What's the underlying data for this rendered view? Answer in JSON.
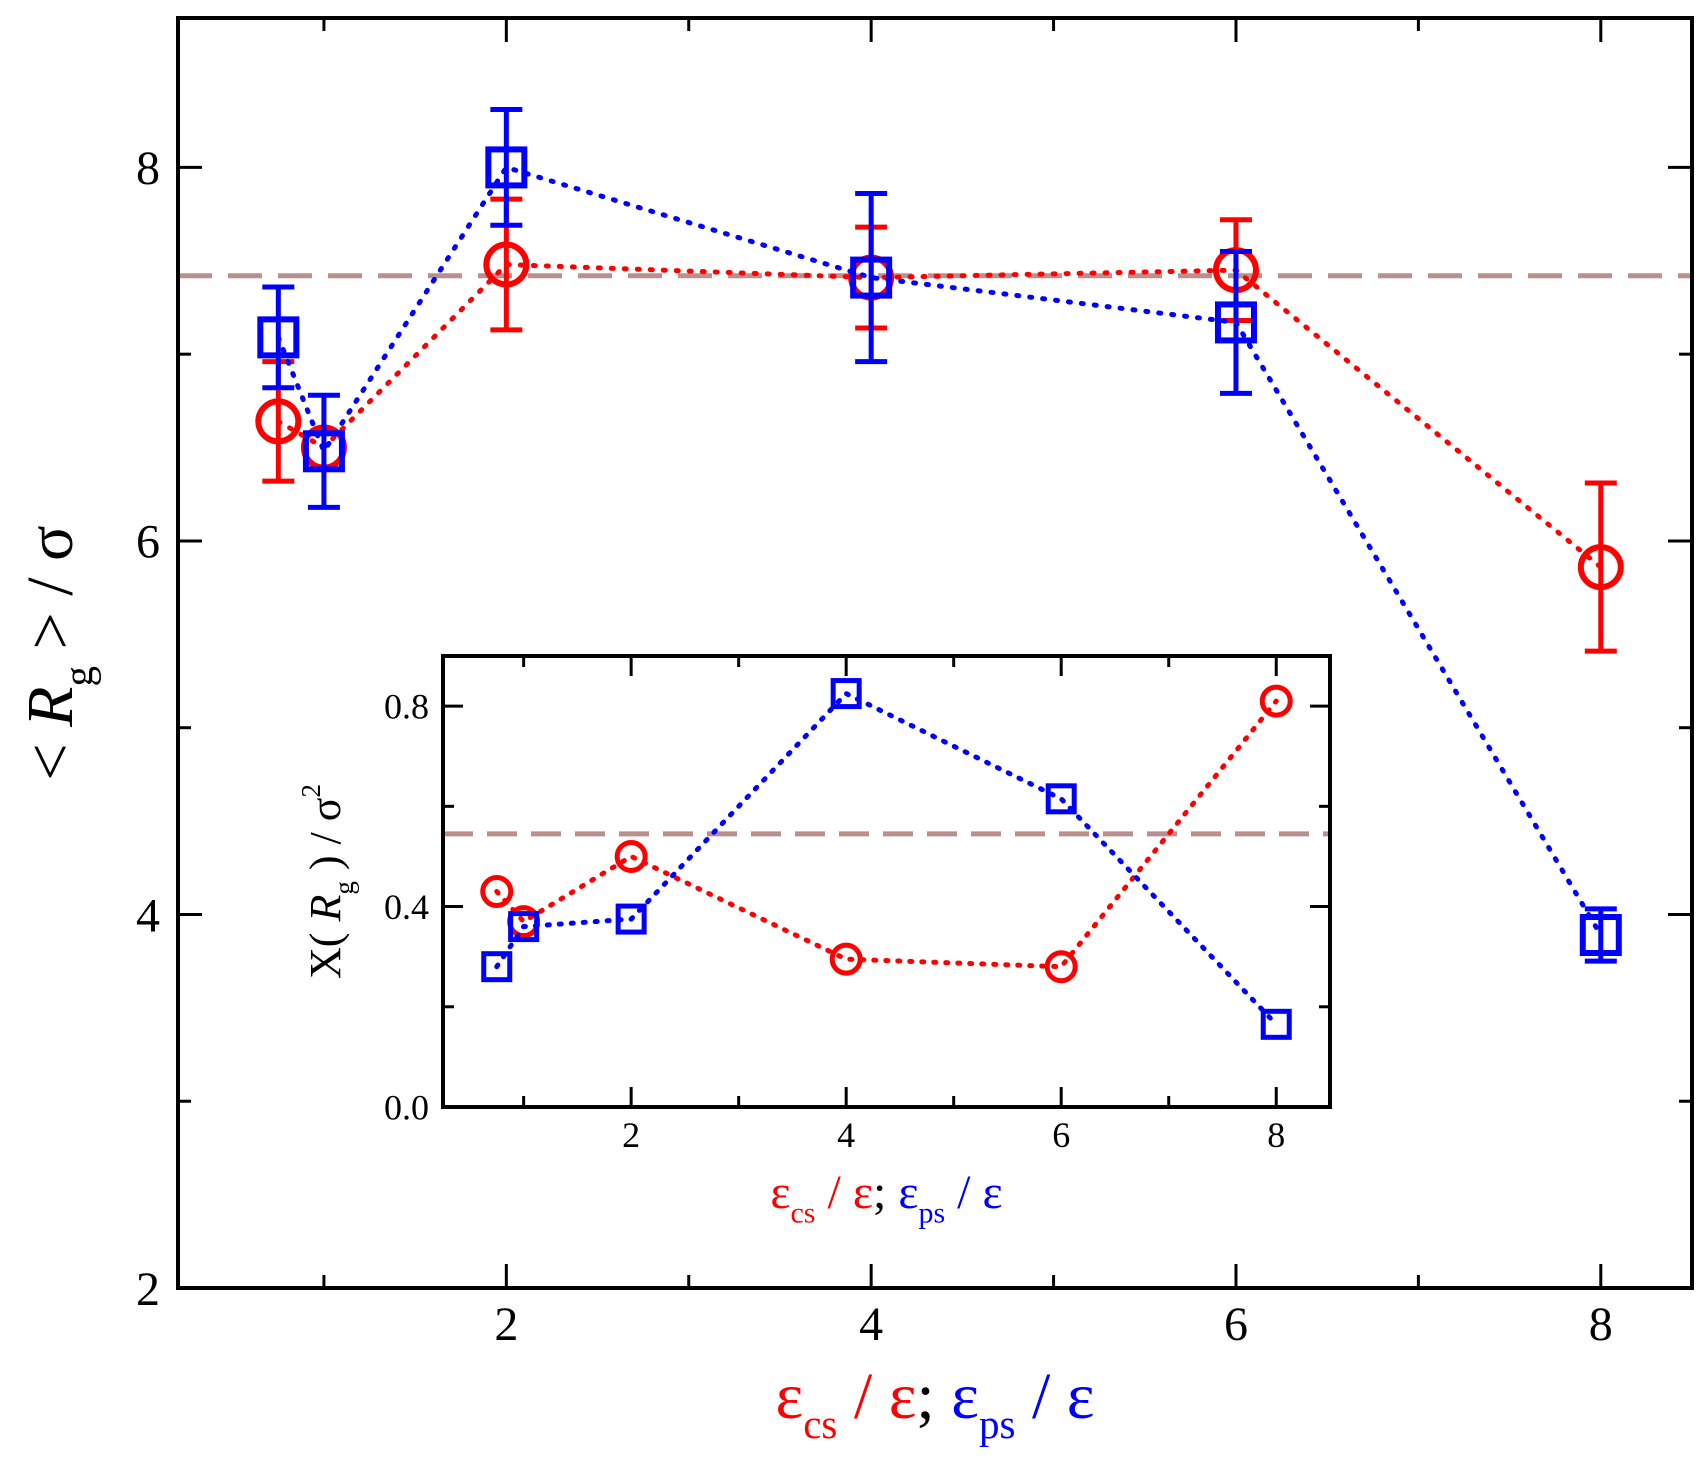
{
  "colors": {
    "series_cs": "#ff0000",
    "series_ps": "#0000ff",
    "reference_line": "#bc8f8f",
    "axes": "#000000",
    "background": "#ffffff"
  },
  "chart_data": [
    {
      "id": "main",
      "type": "scatter",
      "title": "",
      "ylabel": {
        "prefix": "< ",
        "symbol": "R",
        "subscript": "g",
        "suffix": " > / σ"
      },
      "xlabel": {
        "cs_symbol": "ε",
        "cs_sub": "cs",
        "cs_rest": " / ε",
        "separator": "; ",
        "ps_symbol": "ε",
        "ps_sub": "ps",
        "ps_rest": " / ε"
      },
      "xlim": [
        0.2,
        8.5
      ],
      "ylim": [
        2,
        8.8
      ],
      "xticks_major": [
        2,
        4,
        6,
        8
      ],
      "xticks_minor": [
        1,
        3,
        5,
        7
      ],
      "yticks_major": [
        2,
        4,
        6,
        8
      ],
      "yticks_minor": [
        3,
        5,
        7
      ],
      "xtick_labels": [
        "2",
        "4",
        "6",
        "8"
      ],
      "ytick_labels": [
        "2",
        "4",
        "6",
        "8"
      ],
      "reference_y": 7.42,
      "series": [
        {
          "name": "ε_cs / ε",
          "color_key": "series_cs",
          "marker": "circle",
          "x": [
            0.75,
            1.0,
            2.0,
            4.0,
            6.0,
            8.0
          ],
          "y": [
            6.64,
            6.5,
            7.48,
            7.41,
            7.45,
            5.86
          ],
          "err": [
            0.32,
            0.0,
            0.35,
            0.27,
            0.27,
            0.45
          ]
        },
        {
          "name": "ε_ps / ε",
          "color_key": "series_ps",
          "marker": "square",
          "x": [
            0.75,
            1.0,
            2.0,
            4.0,
            6.0,
            8.0
          ],
          "y": [
            7.09,
            6.48,
            8.0,
            7.41,
            7.17,
            3.89
          ],
          "err": [
            0.27,
            0.3,
            0.31,
            0.45,
            0.38,
            0.14
          ]
        }
      ]
    },
    {
      "id": "inset",
      "type": "scatter",
      "title": "",
      "ylabel": {
        "prefix": "X( ",
        "symbol": "R",
        "subscript": "g",
        "suffix": " ) / σ",
        "superscript": "2"
      },
      "xlabel": {
        "cs_symbol": "ε",
        "cs_sub": "cs",
        "cs_rest": " / ε",
        "separator": "; ",
        "ps_symbol": "ε",
        "ps_sub": "ps",
        "ps_rest": " / ε"
      },
      "xlim": [
        0.25,
        8.5
      ],
      "ylim": [
        0.0,
        0.9
      ],
      "xticks_major": [
        2,
        4,
        6,
        8
      ],
      "xticks_minor": [
        1,
        3,
        5,
        7
      ],
      "yticks_major": [
        0.0,
        0.4,
        0.8
      ],
      "yticks_minor": [
        0.2,
        0.6
      ],
      "xtick_labels": [
        "2",
        "4",
        "6",
        "8"
      ],
      "ytick_labels": [
        "0.0",
        "0.4",
        "0.8"
      ],
      "reference_y": 0.545,
      "series": [
        {
          "name": "ε_cs / ε",
          "color_key": "series_cs",
          "marker": "circle",
          "x": [
            0.75,
            1.0,
            2.0,
            4.0,
            6.0,
            8.0
          ],
          "y": [
            0.43,
            0.37,
            0.5,
            0.295,
            0.28,
            0.81
          ],
          "err": []
        },
        {
          "name": "ε_ps / ε",
          "color_key": "series_ps",
          "marker": "square",
          "x": [
            0.75,
            1.0,
            2.0,
            4.0,
            6.0,
            8.0
          ],
          "y": [
            0.28,
            0.36,
            0.375,
            0.825,
            0.615,
            0.165
          ],
          "err": []
        }
      ]
    }
  ]
}
